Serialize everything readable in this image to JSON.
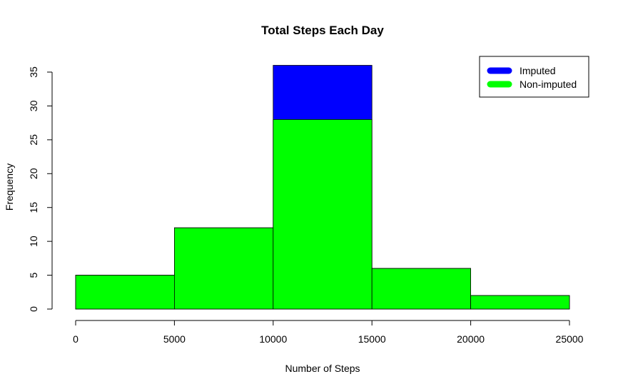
{
  "chart_data": {
    "type": "bar",
    "title": "Total Steps Each Day",
    "xlabel": "Number of Steps",
    "ylabel": "Frequency",
    "bin_edges": [
      0,
      5000,
      10000,
      15000,
      20000,
      25000
    ],
    "xlim": [
      0,
      25000
    ],
    "ylim": [
      0,
      35
    ],
    "x_ticks": [
      "0",
      "5000",
      "10000",
      "15000",
      "20000",
      "25000"
    ],
    "y_ticks": [
      "0",
      "5",
      "10",
      "15",
      "20",
      "25",
      "30",
      "35"
    ],
    "series": [
      {
        "name": "Imputed",
        "color": "#0000ff",
        "values": [
          5,
          12,
          36,
          6,
          2
        ]
      },
      {
        "name": "Non-imputed",
        "color": "#00ff00",
        "values": [
          5,
          12,
          28,
          6,
          2
        ]
      }
    ],
    "grid": false,
    "legend_position": "top-right"
  }
}
